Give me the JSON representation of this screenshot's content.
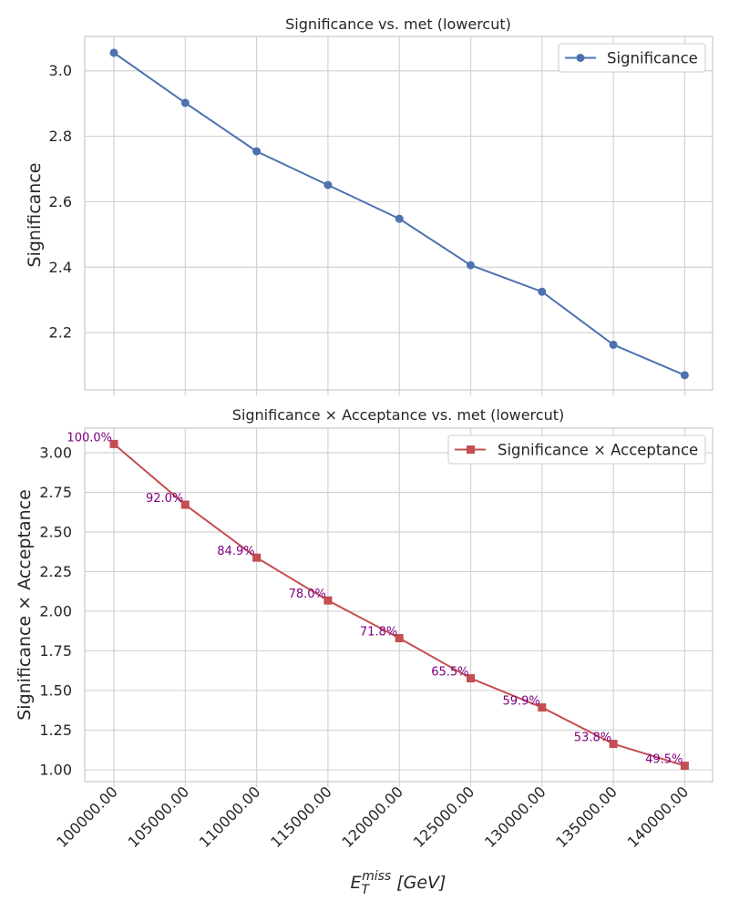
{
  "chart_data": [
    {
      "type": "line",
      "title": "Significance vs. met (lowercut)",
      "xlabel": "",
      "ylabel": "Significance",
      "x": [
        100000,
        105000,
        110000,
        115000,
        120000,
        125000,
        130000,
        135000,
        140000
      ],
      "series": [
        {
          "name": "Significance",
          "values": [
            3.055,
            2.902,
            2.754,
            2.651,
            2.548,
            2.406,
            2.325,
            2.163,
            2.07
          ],
          "color": "#4c72b0",
          "marker": "circle"
        }
      ],
      "ylim": [
        2.025,
        3.105
      ],
      "yticks": [
        2.2,
        2.4,
        2.6,
        2.8,
        3.0
      ],
      "ytick_labels": [
        "2.2",
        "2.4",
        "2.6",
        "2.8",
        "3.0"
      ],
      "grid": true,
      "legend": "upper right"
    },
    {
      "type": "line",
      "title": "Significance × Acceptance vs. met (lowercut)",
      "xlabel": "E_T^miss [GeV]",
      "ylabel": "Significance × Acceptance",
      "x": [
        100000,
        105000,
        110000,
        115000,
        120000,
        125000,
        130000,
        135000,
        140000
      ],
      "x_tick_labels": [
        "100000.00",
        "105000.00",
        "110000.00",
        "115000.00",
        "120000.00",
        "125000.00",
        "130000.00",
        "135000.00",
        "140000.00"
      ],
      "series": [
        {
          "name": "Significance × Acceptance",
          "values": [
            3.055,
            2.672,
            2.338,
            2.068,
            1.83,
            1.577,
            1.393,
            1.163,
            1.025
          ],
          "color": "#c44e52",
          "marker": "square"
        }
      ],
      "annotations": [
        "100.0%",
        "92.0%",
        "84.9%",
        "78.0%",
        "71.8%",
        "65.5%",
        "59.9%",
        "53.8%",
        "49.5%"
      ],
      "annotation_color": "#800080",
      "ylim": [
        0.925,
        3.155
      ],
      "yticks": [
        1.0,
        1.25,
        1.5,
        1.75,
        2.0,
        2.25,
        2.5,
        2.75,
        3.0
      ],
      "ytick_labels": [
        "1.00",
        "1.25",
        "1.50",
        "1.75",
        "2.00",
        "2.25",
        "2.50",
        "2.75",
        "3.00"
      ],
      "grid": true,
      "legend": "upper right"
    }
  ]
}
